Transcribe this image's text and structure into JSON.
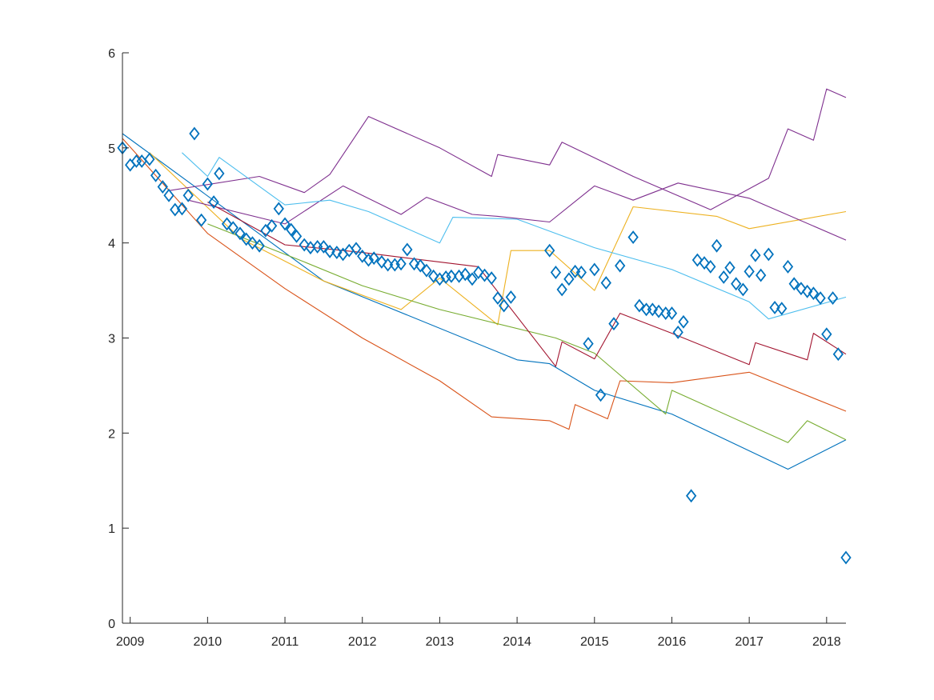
{
  "chart_data": {
    "type": "line",
    "title": "",
    "xlabel": "",
    "ylabel": "",
    "xlim": [
      2008.9,
      2018.25
    ],
    "ylim": [
      0,
      6
    ],
    "x_ticks": [
      2009,
      2010,
      2011,
      2012,
      2013,
      2014,
      2015,
      2016,
      2017,
      2018
    ],
    "y_ticks": [
      0,
      1,
      2,
      3,
      4,
      5,
      6
    ],
    "grid": false,
    "legend": "none",
    "colors": {
      "axis": "#262626",
      "markers": "#0072BD",
      "series_palette": [
        "#0072BD",
        "#D95319",
        "#EDB120",
        "#7E2F8E",
        "#77AC30",
        "#4DBEEE",
        "#A2142F"
      ]
    },
    "series": [
      {
        "kind": "scatter",
        "marker": "diamond",
        "color": "#0072BD",
        "points": [
          [
            2008.9,
            5.0
          ],
          [
            2009.0,
            4.82
          ],
          [
            2009.08,
            4.86
          ],
          [
            2009.15,
            4.86
          ],
          [
            2009.25,
            4.88
          ],
          [
            2009.33,
            4.71
          ],
          [
            2009.42,
            4.59
          ],
          [
            2009.5,
            4.5
          ],
          [
            2009.58,
            4.35
          ],
          [
            2009.67,
            4.36
          ],
          [
            2009.75,
            4.5
          ],
          [
            2009.83,
            5.15
          ],
          [
            2009.92,
            4.24
          ],
          [
            2010.0,
            4.62
          ],
          [
            2010.08,
            4.43
          ],
          [
            2010.15,
            4.73
          ],
          [
            2010.25,
            4.2
          ],
          [
            2010.33,
            4.16
          ],
          [
            2010.42,
            4.1
          ],
          [
            2010.5,
            4.04
          ],
          [
            2010.58,
            4.0
          ],
          [
            2010.67,
            3.97
          ],
          [
            2010.75,
            4.13
          ],
          [
            2010.83,
            4.18
          ],
          [
            2010.92,
            4.36
          ],
          [
            2011.0,
            4.2
          ],
          [
            2011.08,
            4.14
          ],
          [
            2011.15,
            4.07
          ],
          [
            2011.25,
            3.98
          ],
          [
            2011.33,
            3.95
          ],
          [
            2011.42,
            3.96
          ],
          [
            2011.5,
            3.96
          ],
          [
            2011.58,
            3.91
          ],
          [
            2011.67,
            3.9
          ],
          [
            2011.75,
            3.88
          ],
          [
            2011.83,
            3.92
          ],
          [
            2011.92,
            3.94
          ],
          [
            2012.0,
            3.86
          ],
          [
            2012.08,
            3.82
          ],
          [
            2012.15,
            3.84
          ],
          [
            2012.25,
            3.8
          ],
          [
            2012.33,
            3.77
          ],
          [
            2012.42,
            3.77
          ],
          [
            2012.5,
            3.78
          ],
          [
            2012.58,
            3.93
          ],
          [
            2012.67,
            3.78
          ],
          [
            2012.75,
            3.76
          ],
          [
            2012.83,
            3.71
          ],
          [
            2012.92,
            3.65
          ],
          [
            2013.0,
            3.62
          ],
          [
            2013.08,
            3.64
          ],
          [
            2013.15,
            3.65
          ],
          [
            2013.25,
            3.65
          ],
          [
            2013.33,
            3.67
          ],
          [
            2013.42,
            3.62
          ],
          [
            2013.5,
            3.69
          ],
          [
            2013.58,
            3.66
          ],
          [
            2013.67,
            3.63
          ],
          [
            2013.75,
            3.42
          ],
          [
            2013.83,
            3.34
          ],
          [
            2013.92,
            3.43
          ],
          [
            2014.42,
            3.92
          ],
          [
            2014.5,
            3.69
          ],
          [
            2014.58,
            3.51
          ],
          [
            2014.67,
            3.62
          ],
          [
            2014.75,
            3.7
          ],
          [
            2014.83,
            3.69
          ],
          [
            2014.92,
            2.94
          ],
          [
            2015.0,
            3.72
          ],
          [
            2015.08,
            2.4
          ],
          [
            2015.15,
            3.58
          ],
          [
            2015.25,
            3.15
          ],
          [
            2015.33,
            3.76
          ],
          [
            2015.5,
            4.06
          ],
          [
            2015.58,
            3.34
          ],
          [
            2015.67,
            3.3
          ],
          [
            2015.75,
            3.3
          ],
          [
            2015.83,
            3.28
          ],
          [
            2015.92,
            3.26
          ],
          [
            2016.0,
            3.26
          ],
          [
            2016.08,
            3.06
          ],
          [
            2016.15,
            3.17
          ],
          [
            2016.25,
            1.34
          ],
          [
            2016.33,
            3.82
          ],
          [
            2016.42,
            3.79
          ],
          [
            2016.5,
            3.75
          ],
          [
            2016.58,
            3.97
          ],
          [
            2016.67,
            3.64
          ],
          [
            2016.75,
            3.74
          ],
          [
            2016.83,
            3.57
          ],
          [
            2016.92,
            3.51
          ],
          [
            2017.0,
            3.7
          ],
          [
            2017.08,
            3.87
          ],
          [
            2017.15,
            3.66
          ],
          [
            2017.25,
            3.88
          ],
          [
            2017.33,
            3.32
          ],
          [
            2017.42,
            3.31
          ],
          [
            2017.5,
            3.75
          ],
          [
            2017.58,
            3.57
          ],
          [
            2017.67,
            3.52
          ],
          [
            2017.75,
            3.49
          ],
          [
            2017.83,
            3.47
          ],
          [
            2017.92,
            3.42
          ],
          [
            2018.0,
            3.04
          ],
          [
            2018.08,
            3.42
          ],
          [
            2018.15,
            2.83
          ],
          [
            2018.25,
            0.69
          ]
        ]
      },
      {
        "kind": "line",
        "color": "#0072BD",
        "points": [
          [
            2008.9,
            5.15
          ],
          [
            2011.5,
            3.6
          ],
          [
            2014.0,
            2.77
          ],
          [
            2014.42,
            2.73
          ],
          [
            2015.0,
            2.45
          ],
          [
            2016.0,
            2.2
          ],
          [
            2017.5,
            1.62
          ],
          [
            2018.25,
            1.93
          ]
        ]
      },
      {
        "kind": "line",
        "color": "#D95319",
        "points": [
          [
            2008.9,
            5.1
          ],
          [
            2010.0,
            4.1
          ],
          [
            2011.0,
            3.52
          ],
          [
            2012.0,
            3.0
          ],
          [
            2013.0,
            2.55
          ],
          [
            2013.67,
            2.17
          ],
          [
            2014.42,
            2.13
          ],
          [
            2014.67,
            2.04
          ],
          [
            2014.75,
            2.3
          ],
          [
            2015.17,
            2.15
          ],
          [
            2015.33,
            2.55
          ],
          [
            2016.0,
            2.53
          ],
          [
            2017.0,
            2.64
          ],
          [
            2018.25,
            2.23
          ]
        ]
      },
      {
        "kind": "line",
        "color": "#EDB120",
        "points": [
          [
            2009.25,
            4.95
          ],
          [
            2010.42,
            4.05
          ],
          [
            2011.5,
            3.6
          ],
          [
            2012.5,
            3.3
          ],
          [
            2013.0,
            3.63
          ],
          [
            2013.75,
            3.14
          ],
          [
            2013.92,
            3.92
          ],
          [
            2014.42,
            3.92
          ],
          [
            2015.0,
            3.5
          ],
          [
            2015.5,
            4.38
          ],
          [
            2016.58,
            4.28
          ],
          [
            2017.0,
            4.15
          ],
          [
            2018.25,
            4.33
          ]
        ]
      },
      {
        "kind": "line",
        "color": "#7E2F8E",
        "points": [
          [
            2009.5,
            4.55
          ],
          [
            2010.67,
            4.7
          ],
          [
            2011.25,
            4.53
          ],
          [
            2011.58,
            4.72
          ],
          [
            2012.08,
            5.33
          ],
          [
            2013.0,
            5.0
          ],
          [
            2013.67,
            4.7
          ],
          [
            2013.75,
            4.93
          ],
          [
            2014.42,
            4.82
          ],
          [
            2014.58,
            5.06
          ],
          [
            2015.5,
            4.7
          ],
          [
            2016.5,
            4.35
          ],
          [
            2017.25,
            4.68
          ],
          [
            2017.5,
            5.2
          ],
          [
            2017.83,
            5.08
          ],
          [
            2018.0,
            5.62
          ],
          [
            2018.25,
            5.53
          ]
        ]
      },
      {
        "kind": "line",
        "color": "#7E2F8E",
        "points": [
          [
            2009.75,
            4.45
          ],
          [
            2011.0,
            4.2
          ],
          [
            2011.75,
            4.6
          ],
          [
            2012.5,
            4.3
          ],
          [
            2012.83,
            4.48
          ],
          [
            2013.42,
            4.3
          ],
          [
            2013.75,
            4.28
          ],
          [
            2014.42,
            4.22
          ],
          [
            2015.0,
            4.6
          ],
          [
            2015.5,
            4.45
          ],
          [
            2016.08,
            4.63
          ],
          [
            2017.0,
            4.47
          ],
          [
            2018.25,
            4.03
          ]
        ]
      },
      {
        "kind": "line",
        "color": "#4DBEEE",
        "points": [
          [
            2009.67,
            4.95
          ],
          [
            2010.0,
            4.7
          ],
          [
            2010.15,
            4.9
          ],
          [
            2011.0,
            4.4
          ],
          [
            2011.58,
            4.45
          ],
          [
            2012.08,
            4.33
          ],
          [
            2013.0,
            4.0
          ],
          [
            2013.17,
            4.27
          ],
          [
            2014.0,
            4.25
          ],
          [
            2015.0,
            3.95
          ],
          [
            2016.0,
            3.72
          ],
          [
            2017.0,
            3.38
          ],
          [
            2017.25,
            3.2
          ],
          [
            2018.25,
            3.43
          ]
        ]
      },
      {
        "kind": "line",
        "color": "#77AC30",
        "points": [
          [
            2010.0,
            4.2
          ],
          [
            2011.25,
            3.8
          ],
          [
            2012.0,
            3.55
          ],
          [
            2013.0,
            3.3
          ],
          [
            2014.5,
            3.0
          ],
          [
            2015.0,
            2.84
          ],
          [
            2015.92,
            2.2
          ],
          [
            2016.0,
            2.45
          ],
          [
            2017.5,
            1.9
          ],
          [
            2017.75,
            2.13
          ],
          [
            2018.25,
            1.93
          ]
        ]
      },
      {
        "kind": "line",
        "color": "#A2142F",
        "points": [
          [
            2010.0,
            4.43
          ],
          [
            2011.0,
            3.98
          ],
          [
            2012.0,
            3.9
          ],
          [
            2013.5,
            3.75
          ],
          [
            2014.5,
            2.7
          ],
          [
            2014.58,
            2.96
          ],
          [
            2015.0,
            2.78
          ],
          [
            2015.33,
            3.26
          ],
          [
            2016.0,
            3.05
          ],
          [
            2017.0,
            2.72
          ],
          [
            2017.08,
            2.95
          ],
          [
            2017.75,
            2.77
          ],
          [
            2017.83,
            3.05
          ],
          [
            2018.25,
            2.83
          ]
        ]
      }
    ]
  }
}
